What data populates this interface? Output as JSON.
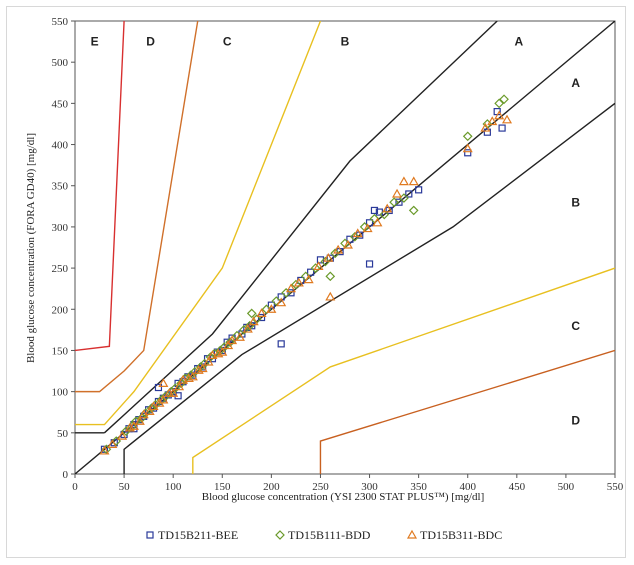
{
  "chart_data": {
    "type": "scatter",
    "xlabel": "Blood glucose concentration (YSI 2300 STAT PLUS™) [mg/dl]",
    "ylabel": "Blood glucose concentration (FORA GD40) [mg/dl]",
    "xlim": [
      0,
      550
    ],
    "ylim": [
      0,
      550
    ],
    "xticks": [
      0,
      50,
      100,
      150,
      200,
      250,
      300,
      350,
      400,
      450,
      500,
      550
    ],
    "yticks": [
      0,
      50,
      100,
      150,
      200,
      250,
      300,
      350,
      400,
      450,
      500,
      550
    ],
    "grid": false,
    "legend_position": "bottom",
    "zone_labels": [
      {
        "text": "E",
        "x": 20,
        "y": 520
      },
      {
        "text": "D",
        "x": 77,
        "y": 520
      },
      {
        "text": "C",
        "x": 155,
        "y": 520
      },
      {
        "text": "B",
        "x": 275,
        "y": 520
      },
      {
        "text": "A",
        "x": 452,
        "y": 520
      },
      {
        "text": "A",
        "x": 510,
        "y": 470
      },
      {
        "text": "B",
        "x": 510,
        "y": 325
      },
      {
        "text": "C",
        "x": 510,
        "y": 175
      },
      {
        "text": "D",
        "x": 510,
        "y": 60
      }
    ],
    "zone_lines": [
      {
        "color": "#222222",
        "points": [
          [
            0,
            0
          ],
          [
            550,
            550
          ]
        ]
      },
      {
        "color": "#222222",
        "points": [
          [
            30,
            50
          ],
          [
            140,
            170
          ],
          [
            280,
            380
          ],
          [
            430,
            550
          ]
        ]
      },
      {
        "color": "#222222",
        "points": [
          [
            30,
            50
          ],
          [
            0,
            50
          ]
        ]
      },
      {
        "color": "#222222",
        "points": [
          [
            50,
            0
          ],
          [
            50,
            30
          ],
          [
            170,
            145
          ],
          [
            385,
            300
          ],
          [
            550,
            450
          ]
        ]
      },
      {
        "color": "#e8c020",
        "points": [
          [
            0,
            60
          ],
          [
            30,
            60
          ],
          [
            60,
            100
          ],
          [
            150,
            250
          ],
          [
            250,
            550
          ]
        ]
      },
      {
        "color": "#e8c020",
        "points": [
          [
            120,
            0
          ],
          [
            120,
            20
          ],
          [
            260,
            130
          ],
          [
            550,
            250
          ]
        ]
      },
      {
        "color": "#d0702a",
        "points": [
          [
            0,
            100
          ],
          [
            25,
            100
          ],
          [
            50,
            125
          ],
          [
            70,
            150
          ],
          [
            125,
            550
          ]
        ]
      },
      {
        "color": "#c86020",
        "points": [
          [
            250,
            0
          ],
          [
            250,
            40
          ],
          [
            550,
            150
          ]
        ]
      },
      {
        "color": "#d83030",
        "points": [
          [
            0,
            150
          ],
          [
            35,
            155
          ],
          [
            50,
            550
          ]
        ]
      }
    ],
    "series": [
      {
        "name": "TD15B211-BEE",
        "marker": "square",
        "color": "#2a3a9a",
        "points": [
          [
            30,
            30
          ],
          [
            40,
            38
          ],
          [
            50,
            48
          ],
          [
            55,
            55
          ],
          [
            60,
            60
          ],
          [
            65,
            66
          ],
          [
            70,
            70
          ],
          [
            75,
            78
          ],
          [
            80,
            80
          ],
          [
            85,
            88
          ],
          [
            90,
            92
          ],
          [
            95,
            96
          ],
          [
            100,
            100
          ],
          [
            105,
            110
          ],
          [
            110,
            112
          ],
          [
            115,
            118
          ],
          [
            120,
            120
          ],
          [
            125,
            128
          ],
          [
            130,
            130
          ],
          [
            135,
            140
          ],
          [
            140,
            140
          ],
          [
            145,
            148
          ],
          [
            150,
            150
          ],
          [
            155,
            160
          ],
          [
            160,
            165
          ],
          [
            170,
            170
          ],
          [
            175,
            178
          ],
          [
            180,
            180
          ],
          [
            190,
            190
          ],
          [
            200,
            205
          ],
          [
            210,
            215
          ],
          [
            220,
            220
          ],
          [
            230,
            235
          ],
          [
            240,
            245
          ],
          [
            250,
            260
          ],
          [
            260,
            262
          ],
          [
            270,
            270
          ],
          [
            280,
            285
          ],
          [
            290,
            290
          ],
          [
            300,
            305
          ],
          [
            305,
            320
          ],
          [
            310,
            318
          ],
          [
            300,
            255
          ],
          [
            210,
            158
          ],
          [
            320,
            320
          ],
          [
            330,
            330
          ],
          [
            340,
            340
          ],
          [
            350,
            345
          ],
          [
            400,
            390
          ],
          [
            420,
            415
          ],
          [
            430,
            440
          ],
          [
            85,
            105
          ],
          [
            105,
            95
          ],
          [
            60,
            55
          ],
          [
            435,
            420
          ]
        ]
      },
      {
        "name": "TD15B111-BDD",
        "marker": "diamond",
        "color": "#6a9a2a",
        "points": [
          [
            32,
            30
          ],
          [
            42,
            40
          ],
          [
            52,
            52
          ],
          [
            58,
            58
          ],
          [
            62,
            64
          ],
          [
            68,
            68
          ],
          [
            72,
            74
          ],
          [
            78,
            80
          ],
          [
            82,
            84
          ],
          [
            88,
            90
          ],
          [
            92,
            94
          ],
          [
            98,
            100
          ],
          [
            102,
            104
          ],
          [
            108,
            110
          ],
          [
            112,
            116
          ],
          [
            118,
            120
          ],
          [
            122,
            124
          ],
          [
            128,
            130
          ],
          [
            132,
            134
          ],
          [
            138,
            142
          ],
          [
            142,
            146
          ],
          [
            148,
            150
          ],
          [
            152,
            154
          ],
          [
            158,
            160
          ],
          [
            165,
            168
          ],
          [
            172,
            175
          ],
          [
            178,
            180
          ],
          [
            185,
            188
          ],
          [
            195,
            200
          ],
          [
            205,
            210
          ],
          [
            215,
            220
          ],
          [
            225,
            230
          ],
          [
            235,
            240
          ],
          [
            245,
            250
          ],
          [
            255,
            258
          ],
          [
            265,
            268
          ],
          [
            275,
            280
          ],
          [
            285,
            288
          ],
          [
            295,
            300
          ],
          [
            305,
            310
          ],
          [
            315,
            315
          ],
          [
            325,
            330
          ],
          [
            335,
            335
          ],
          [
            345,
            320
          ],
          [
            400,
            410
          ],
          [
            420,
            425
          ],
          [
            432,
            450
          ],
          [
            437,
            455
          ],
          [
            260,
            240
          ],
          [
            180,
            195
          ]
        ]
      },
      {
        "name": "TD15B311-BDC",
        "marker": "triangle",
        "color": "#e07a20",
        "points": [
          [
            30,
            28
          ],
          [
            38,
            36
          ],
          [
            48,
            46
          ],
          [
            56,
            56
          ],
          [
            60,
            58
          ],
          [
            66,
            64
          ],
          [
            70,
            72
          ],
          [
            76,
            76
          ],
          [
            80,
            82
          ],
          [
            86,
            86
          ],
          [
            90,
            90
          ],
          [
            96,
            98
          ],
          [
            100,
            98
          ],
          [
            106,
            106
          ],
          [
            110,
            114
          ],
          [
            116,
            116
          ],
          [
            120,
            118
          ],
          [
            126,
            126
          ],
          [
            130,
            128
          ],
          [
            136,
            136
          ],
          [
            140,
            144
          ],
          [
            146,
            146
          ],
          [
            150,
            148
          ],
          [
            156,
            156
          ],
          [
            160,
            162
          ],
          [
            168,
            166
          ],
          [
            176,
            176
          ],
          [
            182,
            185
          ],
          [
            190,
            195
          ],
          [
            200,
            200
          ],
          [
            210,
            208
          ],
          [
            220,
            225
          ],
          [
            228,
            232
          ],
          [
            238,
            236
          ],
          [
            248,
            252
          ],
          [
            258,
            262
          ],
          [
            268,
            272
          ],
          [
            278,
            278
          ],
          [
            288,
            292
          ],
          [
            298,
            298
          ],
          [
            308,
            305
          ],
          [
            318,
            322
          ],
          [
            328,
            340
          ],
          [
            335,
            355
          ],
          [
            345,
            355
          ],
          [
            400,
            395
          ],
          [
            418,
            420
          ],
          [
            425,
            428
          ],
          [
            432,
            435
          ],
          [
            440,
            430
          ],
          [
            260,
            215
          ],
          [
            90,
            110
          ]
        ]
      }
    ]
  }
}
